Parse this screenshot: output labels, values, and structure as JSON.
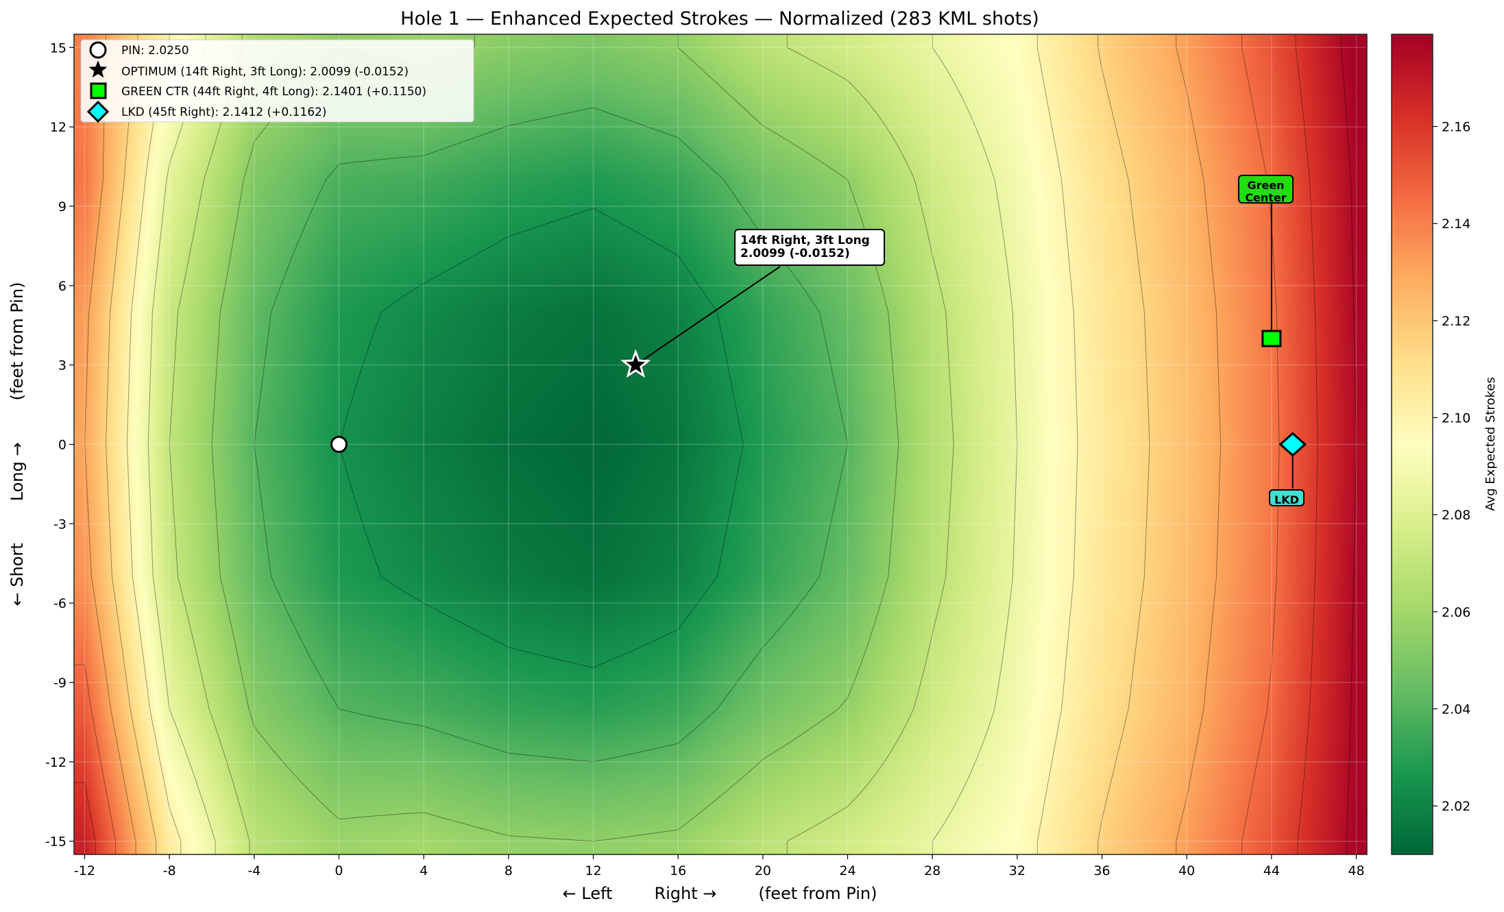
{
  "chart_data": {
    "type": "heatmap",
    "title": "Hole 1 — Enhanced Expected Strokes — Normalized (283 KML shots)",
    "xlabel": "← Left        Right →        (feet from Pin)",
    "ylabel": "← Short        Long →        (feet from Pin)",
    "xlim": [
      -12.5,
      48.5
    ],
    "ylim": [
      -15.5,
      15.5
    ],
    "x_ticks": [
      -12,
      -8,
      -4,
      0,
      4,
      8,
      12,
      16,
      20,
      24,
      28,
      32,
      36,
      40,
      44,
      48
    ],
    "y_ticks": [
      15,
      12,
      9,
      6,
      3,
      0,
      -3,
      -6,
      -9,
      -12,
      -15
    ],
    "grid": true,
    "grid_x": [
      -12,
      -8,
      -4,
      0,
      4,
      8,
      12,
      16,
      20,
      24,
      28,
      32,
      36,
      40,
      44,
      48
    ],
    "grid_y": [
      15,
      10,
      5,
      0,
      -5,
      -10,
      -15
    ],
    "z": [
      [
        2.14,
        2.1,
        2.065,
        2.055,
        2.058,
        2.053,
        2.05,
        2.055,
        2.068,
        2.075,
        2.085,
        2.095,
        2.116,
        2.132,
        2.152,
        2.18
      ],
      [
        2.143,
        2.083,
        2.051,
        2.038,
        2.036,
        2.031,
        2.028,
        2.033,
        2.046,
        2.055,
        2.074,
        2.089,
        2.11,
        2.126,
        2.146,
        2.177
      ],
      [
        2.133,
        2.073,
        2.043,
        2.028,
        2.022,
        2.017,
        2.014,
        2.019,
        2.032,
        2.044,
        2.067,
        2.086,
        2.107,
        2.123,
        2.143,
        2.176
      ],
      [
        2.13,
        2.07,
        2.04,
        2.025,
        2.018,
        2.013,
        2.01,
        2.015,
        2.028,
        2.04,
        2.065,
        2.085,
        2.106,
        2.122,
        2.142,
        2.175
      ],
      [
        2.135,
        2.073,
        2.043,
        2.028,
        2.022,
        2.017,
        2.014,
        2.019,
        2.032,
        2.044,
        2.067,
        2.086,
        2.107,
        2.123,
        2.143,
        2.176
      ],
      [
        2.15,
        2.085,
        2.053,
        2.04,
        2.037,
        2.032,
        2.03,
        2.034,
        2.047,
        2.056,
        2.074,
        2.089,
        2.11,
        2.126,
        2.146,
        2.177
      ],
      [
        2.168,
        2.105,
        2.068,
        2.058,
        2.06,
        2.056,
        2.055,
        2.057,
        2.068,
        2.075,
        2.085,
        2.095,
        2.116,
        2.132,
        2.152,
        2.178
      ]
    ],
    "contour_levels": [
      2.025,
      2.04,
      2.055,
      2.07,
      2.085,
      2.1,
      2.115,
      2.13,
      2.145,
      2.16,
      2.175
    ],
    "colorbar": {
      "label": "Avg Expected Strokes",
      "range": [
        2.01,
        2.179
      ],
      "ticks": [
        "2.02",
        "2.04",
        "2.06",
        "2.08",
        "2.10",
        "2.12",
        "2.14",
        "2.16"
      ],
      "colormap": "RdYlGn_r",
      "stops": [
        "#006837",
        "#1a9850",
        "#66bd63",
        "#a6d96a",
        "#d9ef8b",
        "#ffffbf",
        "#fee08b",
        "#fdae61",
        "#f46d43",
        "#d73027",
        "#a50026"
      ]
    },
    "markers": [
      {
        "id": "pin",
        "x": 0,
        "y": 0,
        "shape": "circle",
        "color": "#ffffff",
        "legend": "PIN:  2.0250"
      },
      {
        "id": "optimum",
        "x": 14,
        "y": 3,
        "shape": "star",
        "color": "#000000",
        "legend": "OPTIMUM (14ft Right, 3ft Long):  2.0099  (-0.0152)"
      },
      {
        "id": "green-ctr",
        "x": 44,
        "y": 4,
        "shape": "square",
        "color": "#00ff00",
        "legend": "GREEN CTR (44ft Right, 4ft Long):  2.1401  (+0.1150)"
      },
      {
        "id": "lkd",
        "x": 45,
        "y": 0,
        "shape": "diamond",
        "color": "#00ffff",
        "legend": "LKD (45ft Right):  2.1412  (+0.1162)"
      }
    ],
    "annotations": {
      "optimum": [
        "14ft Right, 3ft Long",
        "2.0099  (-0.0152)"
      ],
      "green": [
        "Green",
        "Center"
      ],
      "green_color": "#22dd11",
      "lkd": [
        "LKD"
      ],
      "lkd_color": "#40e0d0"
    },
    "legend_position": "upper-left"
  }
}
